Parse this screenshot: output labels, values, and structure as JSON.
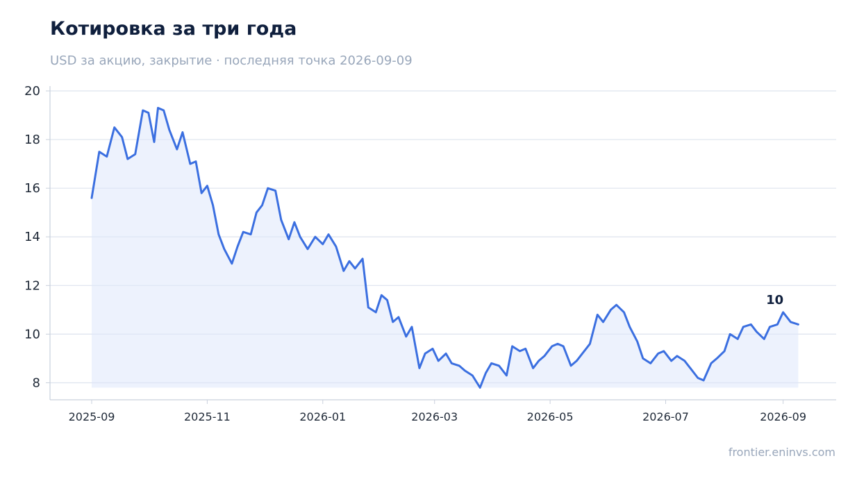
{
  "header": {
    "title": "Котировка за три года",
    "subtitle": "USD за акцию, закрытие · последняя точка 2026-09-09"
  },
  "footer": {
    "source": "frontier.eninvs.com"
  },
  "colors": {
    "line": "#3b6fe0",
    "fill": "#dfe8fb",
    "grid": "#dde3ee",
    "axis": "#c9d0dc",
    "text": "#1f2937"
  },
  "chart_data": {
    "type": "area",
    "title": "Котировка за три года",
    "subtitle": "USD за акцию, закрытие · последняя точка 2026-09-09",
    "xlabel": "",
    "ylabel": "",
    "grid": true,
    "ylim": [
      7.3,
      20.2
    ],
    "xlim": [
      "2025-08-10",
      "2026-09-29"
    ],
    "y_ticks": [
      8,
      10,
      12,
      14,
      16,
      18,
      20
    ],
    "x_ticks": [
      "2025-09",
      "2025-11",
      "2026-01",
      "2026-03",
      "2026-05",
      "2026-07",
      "2026-09"
    ],
    "last_label": "10",
    "series": [
      {
        "x": [
          "2025-09-01",
          "2025-09-05",
          "2025-09-09",
          "2025-09-13",
          "2025-09-17",
          "2025-09-20",
          "2025-09-24",
          "2025-09-28",
          "2025-10-01",
          "2025-10-04",
          "2025-10-06",
          "2025-10-09",
          "2025-10-12",
          "2025-10-16",
          "2025-10-19",
          "2025-10-23",
          "2025-10-26",
          "2025-10-29",
          "2025-11-01",
          "2025-11-04",
          "2025-11-07",
          "2025-11-10",
          "2025-11-14",
          "2025-11-17",
          "2025-11-20",
          "2025-11-24",
          "2025-11-27",
          "2025-11-30",
          "2025-12-03",
          "2025-12-07",
          "2025-12-10",
          "2025-12-14",
          "2025-12-17",
          "2025-12-20",
          "2025-12-24",
          "2025-12-28",
          "2026-01-01",
          "2026-01-04",
          "2026-01-08",
          "2026-01-12",
          "2026-01-15",
          "2026-01-18",
          "2026-01-22",
          "2026-01-25",
          "2026-01-29",
          "2026-02-01",
          "2026-02-04",
          "2026-02-07",
          "2026-02-10",
          "2026-02-14",
          "2026-02-17",
          "2026-02-21",
          "2026-02-24",
          "2026-02-28",
          "2026-03-03",
          "2026-03-07",
          "2026-03-10",
          "2026-03-14",
          "2026-03-17",
          "2026-03-21",
          "2026-03-25",
          "2026-03-28",
          "2026-03-31",
          "2026-04-04",
          "2026-04-08",
          "2026-04-11",
          "2026-04-15",
          "2026-04-18",
          "2026-04-22",
          "2026-04-25",
          "2026-04-28",
          "2026-05-02",
          "2026-05-05",
          "2026-05-08",
          "2026-05-12",
          "2026-05-15",
          "2026-05-19",
          "2026-05-22",
          "2026-05-26",
          "2026-05-29",
          "2026-06-02",
          "2026-06-05",
          "2026-06-09",
          "2026-06-12",
          "2026-06-16",
          "2026-06-19",
          "2026-06-23",
          "2026-06-27",
          "2026-06-30",
          "2026-07-04",
          "2026-07-07",
          "2026-07-11",
          "2026-07-14",
          "2026-07-18",
          "2026-07-21",
          "2026-07-25",
          "2026-07-28",
          "2026-08-01",
          "2026-08-04",
          "2026-08-08",
          "2026-08-11",
          "2026-08-15",
          "2026-08-18",
          "2026-08-22",
          "2026-08-25",
          "2026-08-29",
          "2026-09-01",
          "2026-09-05",
          "2026-09-09"
        ],
        "values": [
          15.6,
          17.5,
          17.3,
          18.5,
          18.1,
          17.2,
          17.4,
          19.2,
          19.1,
          17.9,
          19.3,
          19.2,
          18.4,
          17.6,
          18.3,
          17.0,
          17.1,
          15.8,
          16.1,
          15.3,
          14.1,
          13.5,
          12.9,
          13.6,
          14.2,
          14.1,
          15.0,
          15.3,
          16.0,
          15.9,
          14.7,
          13.9,
          14.6,
          14.0,
          13.5,
          14.0,
          13.7,
          14.1,
          13.6,
          12.6,
          13.0,
          12.7,
          13.1,
          11.1,
          10.9,
          11.6,
          11.4,
          10.5,
          10.7,
          9.9,
          10.3,
          8.6,
          9.2,
          9.4,
          8.9,
          9.2,
          8.8,
          8.7,
          8.5,
          8.3,
          7.8,
          8.4,
          8.8,
          8.7,
          8.3,
          9.5,
          9.3,
          9.4,
          8.6,
          8.9,
          9.1,
          9.5,
          9.6,
          9.5,
          8.7,
          8.9,
          9.3,
          9.6,
          10.8,
          10.5,
          11.0,
          11.2,
          10.9,
          10.3,
          9.7,
          9.0,
          8.8,
          9.2,
          9.3,
          8.9,
          9.1,
          8.9,
          8.6,
          8.2,
          8.1,
          8.8,
          9.0,
          9.3,
          10.0,
          9.8,
          10.3,
          10.4,
          10.1,
          9.8,
          10.3,
          10.4,
          10.9,
          10.5,
          10.4
        ]
      }
    ]
  }
}
